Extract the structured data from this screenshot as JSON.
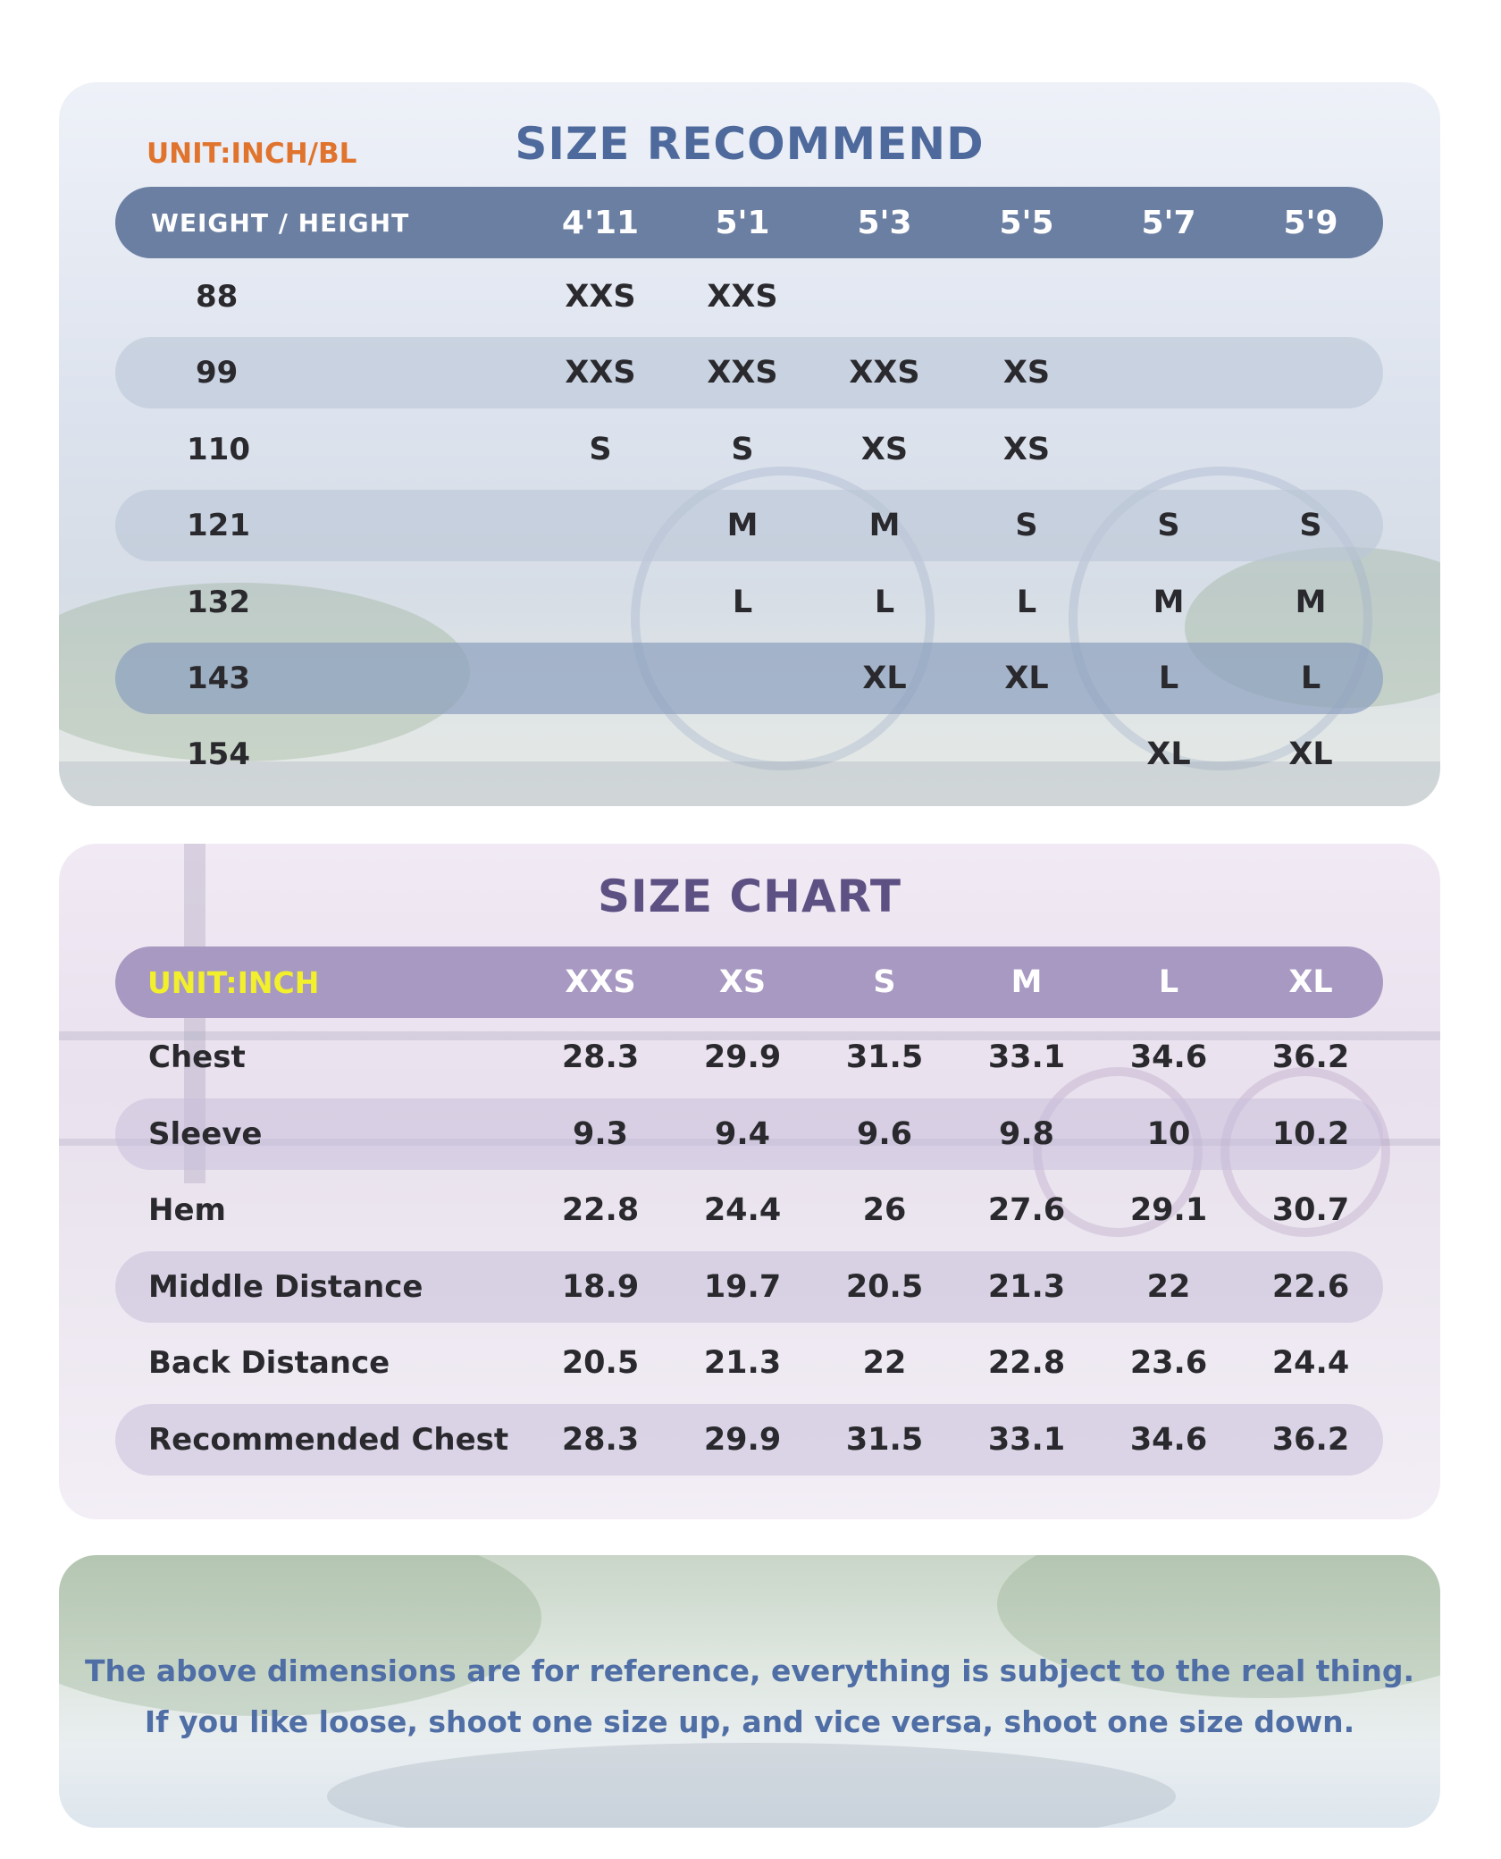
{
  "recommend": {
    "unit": "UNIT:INCH/BL",
    "title": "SIZE RECOMMEND",
    "header_label": "WEIGHT   /   HEIGHT",
    "heights": [
      "4'11",
      "5'1",
      "5'3",
      "5'5",
      "5'7",
      "5'9"
    ],
    "rows": [
      {
        "weight": "88",
        "sizes": [
          "XXS",
          "XXS",
          "",
          "",
          "",
          ""
        ]
      },
      {
        "weight": "99",
        "sizes": [
          "XXS",
          "XXS",
          "XXS",
          "XS",
          "",
          ""
        ]
      },
      {
        "weight": "110",
        "sizes": [
          "S",
          "S",
          "XS",
          "XS",
          "",
          ""
        ]
      },
      {
        "weight": "121",
        "sizes": [
          "",
          "M",
          "M",
          "S",
          "S",
          "S"
        ]
      },
      {
        "weight": "132",
        "sizes": [
          "",
          "L",
          "L",
          "L",
          "M",
          "M"
        ]
      },
      {
        "weight": "143",
        "sizes": [
          "",
          "",
          "XL",
          "XL",
          "L",
          "L"
        ]
      },
      {
        "weight": "154",
        "sizes": [
          "",
          "",
          "",
          "",
          "XL",
          "XL"
        ]
      }
    ]
  },
  "chart": {
    "title": "SIZE CHART",
    "unit": "UNIT:INCH",
    "sizes": [
      "XXS",
      "XS",
      "S",
      "M",
      "L",
      "XL"
    ],
    "rows": [
      {
        "label": "Chest",
        "values": [
          "28.3",
          "29.9",
          "31.5",
          "33.1",
          "34.6",
          "36.2"
        ]
      },
      {
        "label": "Sleeve",
        "values": [
          "9.3",
          "9.4",
          "9.6",
          "9.8",
          "10",
          "10.2"
        ]
      },
      {
        "label": "Hem",
        "values": [
          "22.8",
          "24.4",
          "26",
          "27.6",
          "29.1",
          "30.7"
        ]
      },
      {
        "label": "Middle Distance",
        "values": [
          "18.9",
          "19.7",
          "20.5",
          "21.3",
          "22",
          "22.6"
        ]
      },
      {
        "label": "Back Distance",
        "values": [
          "20.5",
          "21.3",
          "22",
          "22.8",
          "23.6",
          "24.4"
        ]
      },
      {
        "label": "Recommended Chest",
        "values": [
          "28.3",
          "29.9",
          "31.5",
          "33.1",
          "34.6",
          "36.2"
        ]
      }
    ]
  },
  "note": {
    "line1": "The above dimensions are for reference, everything is subject to the real thing.",
    "line2": "If you like loose, shoot one size up, and vice versa, shoot one size down."
  },
  "colors": {
    "recommend_title": "#4e6a9c",
    "chart_title": "#5d5083",
    "unit_bl": "#e0742e",
    "unit_inch": "#f2ef2c",
    "header1_bg": "#6b7fa2",
    "header2_bg": "#a899c2",
    "note_text": "#4f6ea6"
  }
}
